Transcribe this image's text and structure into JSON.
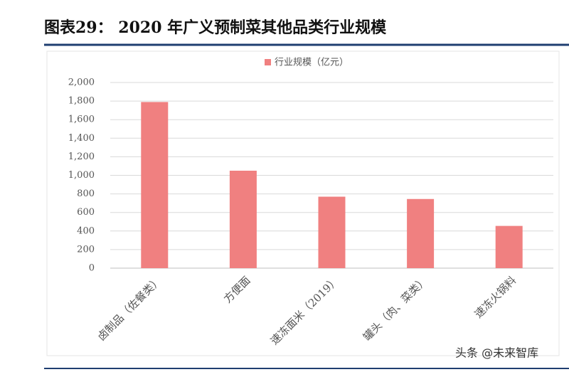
{
  "header": {
    "title": "图表29：  2020 年广义预制菜其他品类行业规模"
  },
  "chart_data": {
    "type": "bar",
    "categories": [
      "卤制品（佐餐类）",
      "方便面",
      "速冻面米（2019）",
      "罐头（肉、菜类）",
      "速冻火锅料"
    ],
    "series": [
      {
        "name": "行业规模（亿元）",
        "color": "#f08080",
        "values": [
          1790,
          1050,
          770,
          745,
          455
        ]
      }
    ],
    "ylim": [
      0,
      2000
    ],
    "yticks": [
      0,
      200,
      400,
      600,
      800,
      {
        "value": 1000,
        "label": "1,000"
      },
      {
        "value": 1200,
        "label": "1,200"
      },
      {
        "value": 1400,
        "label": "1,400"
      },
      {
        "value": 1600,
        "label": "1,600"
      },
      {
        "value": 1800,
        "label": "1,800"
      },
      {
        "value": 2000,
        "label": "2,000"
      }
    ],
    "grid": true,
    "legend": "top"
  },
  "footer": {
    "watermark": "头条 @未来智库"
  }
}
